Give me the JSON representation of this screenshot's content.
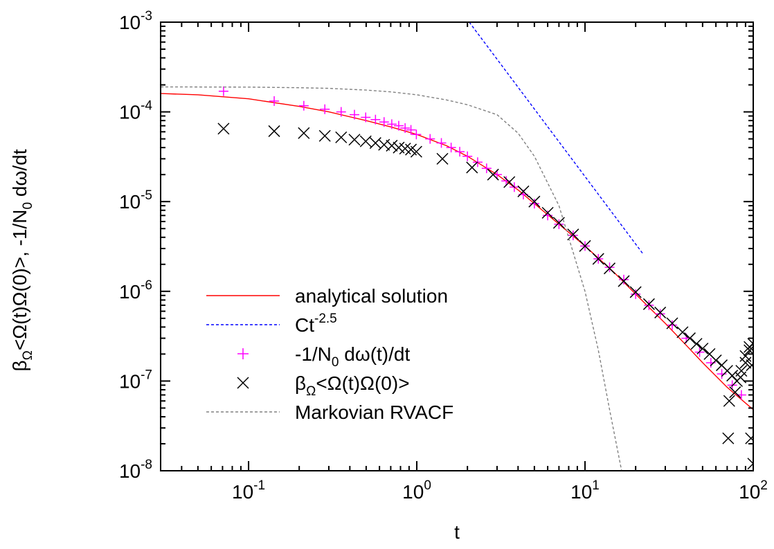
{
  "chart_data": {
    "type": "scatter",
    "xlabel": "t",
    "ylabel": "βΩ<Ω(t)Ω(0)>, -1/N0 dω/dt",
    "xscale": "log",
    "yscale": "log",
    "xlim": [
      0.03,
      100
    ],
    "ylim": [
      1e-08,
      0.001
    ],
    "grid": false,
    "legend_position": "lower-left",
    "x_ticks": [
      {
        "value": 0.1,
        "base": "10",
        "exp": "-1"
      },
      {
        "value": 1,
        "base": "10",
        "exp": "0"
      },
      {
        "value": 10,
        "base": "10",
        "exp": "1"
      },
      {
        "value": 100,
        "base": "10",
        "exp": "2"
      }
    ],
    "y_ticks": [
      {
        "value": 1e-08,
        "base": "10",
        "exp": "-8"
      },
      {
        "value": 1e-07,
        "base": "10",
        "exp": "-7"
      },
      {
        "value": 1e-06,
        "base": "10",
        "exp": "-6"
      },
      {
        "value": 1e-05,
        "base": "10",
        "exp": "-5"
      },
      {
        "value": 0.0001,
        "base": "10",
        "exp": "-4"
      },
      {
        "value": 0.001,
        "base": "10",
        "exp": "-3"
      }
    ],
    "series": [
      {
        "name": "analytical solution",
        "kind": "line",
        "style": "solid",
        "color": "#ff0000",
        "x": [
          0.03,
          0.05,
          0.1,
          0.2,
          0.3,
          0.5,
          0.7,
          1.0,
          1.5,
          2.0,
          3.0,
          4.0,
          5.0,
          7.0,
          10,
          15,
          20,
          30,
          40,
          50,
          70,
          100
        ],
        "y": [
          0.00016,
          0.000155,
          0.00014,
          0.000115,
          0.0001,
          8e-05,
          6.8e-05,
          5.6e-05,
          4.2e-05,
          3.2e-05,
          2e-05,
          1.35e-05,
          9.5e-06,
          5.6e-06,
          3.2e-06,
          1.6e-06,
          9.3e-07,
          4.4e-07,
          2.5e-07,
          1.6e-07,
          8.5e-08,
          4.8e-08
        ]
      },
      {
        "name": "Ct",
        "name_sup": "-2.5",
        "kind": "line",
        "style": "dashed",
        "color": "#0000ff",
        "x": [
          2.05,
          22
        ],
        "y": [
          0.001,
          2.65e-06
        ]
      },
      {
        "name": "-1/N",
        "name_sub": "0",
        "name_rest": " dω(t)/dt",
        "kind": "markers",
        "marker": "plus",
        "color": "#ff00ff",
        "x": [
          0.071,
          0.142,
          0.213,
          0.284,
          0.355,
          0.426,
          0.497,
          0.568,
          0.639,
          0.71,
          0.781,
          0.852,
          0.923,
          0.994,
          1.2,
          1.4,
          1.6,
          1.8,
          2.0,
          2.3,
          2.6,
          3.0,
          3.4,
          3.8,
          4.3,
          5.0,
          6.0,
          7.0,
          8.5,
          10,
          12,
          14,
          17,
          20,
          24,
          28,
          33,
          40,
          48,
          56,
          65,
          75,
          85,
          100
        ],
        "y": [
          0.00017,
          0.000132,
          0.000117,
          0.000107,
          0.0001,
          9.3e-05,
          8.7e-05,
          8.2e-05,
          7.7e-05,
          7.3e-05,
          7e-05,
          6.6e-05,
          6.3e-05,
          5.6e-05,
          5e-05,
          4.5e-05,
          4e-05,
          3.6e-05,
          3.2e-05,
          2.75e-05,
          2.35e-05,
          2e-05,
          1.7e-05,
          1.45e-05,
          1.2e-05,
          9.5e-06,
          7e-06,
          5.6e-06,
          4.2e-06,
          3.2e-06,
          2.3e-06,
          1.85e-06,
          1.35e-06,
          9.3e-07,
          7e-07,
          5.6e-07,
          4.2e-07,
          3e-07,
          2.1e-07,
          1.6e-07,
          1.2e-07,
          9e-08,
          7e-08,
          5e-08
        ]
      },
      {
        "name": "β",
        "name_sub": "Ω",
        "name_rest": "<Ω(t)Ω(0)>",
        "kind": "markers",
        "marker": "cross",
        "color": "#000000",
        "x": [
          0.071,
          0.142,
          0.213,
          0.284,
          0.355,
          0.426,
          0.497,
          0.568,
          0.639,
          0.71,
          0.781,
          0.852,
          0.923,
          0.994,
          1.42,
          2.13,
          2.84,
          3.55,
          4.3,
          5.0,
          6.0,
          7.0,
          8.5,
          10,
          12,
          14,
          17,
          20,
          24,
          28,
          33,
          38,
          42,
          46,
          50,
          55,
          60,
          65,
          70,
          75,
          80,
          85,
          90,
          95,
          100,
          72,
          78,
          84,
          90,
          95,
          98,
          71,
          97,
          100
        ],
        "y": [
          6.5e-05,
          6.1e-05,
          5.8e-05,
          5.4e-05,
          5.2e-05,
          4.9e-05,
          4.7e-05,
          4.5e-05,
          4.3e-05,
          4.2e-05,
          4e-05,
          3.9e-05,
          3.8e-05,
          3.6e-05,
          3e-05,
          2.4e-05,
          2e-05,
          1.65e-05,
          1.3e-05,
          1e-05,
          7.5e-06,
          5.8e-06,
          4.3e-06,
          3.2e-06,
          2.3e-06,
          1.8e-06,
          1.3e-06,
          9.8e-07,
          7.2e-07,
          5.8e-07,
          4.4e-07,
          3.5e-07,
          3e-07,
          2.6e-07,
          2.3e-07,
          2e-07,
          1.7e-07,
          1.5e-07,
          1.3e-07,
          1.15e-07,
          1e-07,
          1.3e-07,
          1.9e-07,
          2.4e-07,
          2.6e-07,
          6e-08,
          7.5e-08,
          1.1e-07,
          1.6e-07,
          2.2e-07,
          1.5e-07,
          2.3e-08,
          2.3e-08,
          1.2e-08
        ]
      },
      {
        "name": "Markovian RVACF",
        "kind": "line",
        "style": "dashed",
        "color": "#808080",
        "x": [
          0.03,
          0.1,
          0.2,
          0.3,
          0.5,
          0.7,
          1.0,
          1.5,
          2.0,
          3.0,
          4.0,
          5.0,
          7.0,
          10,
          12,
          14,
          16.5
        ],
        "y": [
          0.00019,
          0.000189,
          0.000186,
          0.000183,
          0.000175,
          0.000167,
          0.000155,
          0.000136,
          0.00012,
          9.3e-05,
          5.8e-05,
          3.2e-05,
          9e-06,
          1e-06,
          2.2e-07,
          4.8e-08,
          1e-08
        ]
      }
    ]
  }
}
